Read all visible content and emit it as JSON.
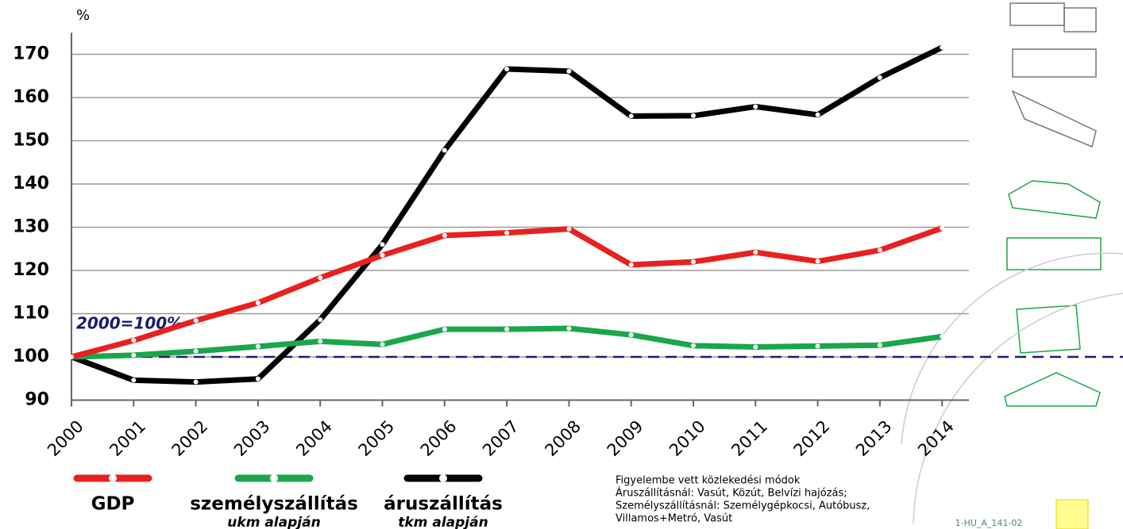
{
  "chart_data": {
    "type": "line",
    "y_unit_label": "%",
    "categories": [
      "2000",
      "2001",
      "2002",
      "2003",
      "2004",
      "2005",
      "2006",
      "2007",
      "2008",
      "2009",
      "2010",
      "2011",
      "2012",
      "2013",
      "2014"
    ],
    "series": [
      {
        "name": "GDP",
        "color": "#e8201f",
        "values": [
          100,
          103.8,
          108.4,
          112.5,
          118.3,
          123.5,
          128.1,
          128.7,
          129.6,
          121.3,
          122.0,
          124.2,
          122.1,
          124.7,
          129.8
        ]
      },
      {
        "name": "személyszállítás",
        "basis_label": "ukm alapján",
        "color": "#1aa64a",
        "values": [
          100,
          100.4,
          101.3,
          102.4,
          103.6,
          102.9,
          106.4,
          106.4,
          106.6,
          105.1,
          102.6,
          102.3,
          102.5,
          102.7,
          104.7
        ]
      },
      {
        "name": "áruszállítás",
        "basis_label": "tkm alapján",
        "color": "#000000",
        "values": [
          100,
          94.6,
          94.2,
          94.9,
          108.6,
          126.0,
          147.8,
          166.6,
          166.1,
          155.7,
          155.8,
          157.9,
          156.0,
          164.6,
          171.6
        ]
      }
    ],
    "ylim": [
      90,
      175
    ],
    "yticks": [
      90,
      100,
      110,
      120,
      130,
      140,
      150,
      160,
      170
    ],
    "grid": true,
    "reference_line": {
      "value": 100,
      "label": "2000=100%",
      "color": "#1c1c6e"
    },
    "note": [
      "Figyelembe vett közlekedési módok",
      "Áruszállításnál: Vasút, Közút, Belvízi hajózás;",
      "Személyszállításnál: Személygépkocsi, Autóbusz,",
      "Villamos+Metró, Vasút"
    ],
    "footer_code": "1-HU_A_141-02"
  }
}
